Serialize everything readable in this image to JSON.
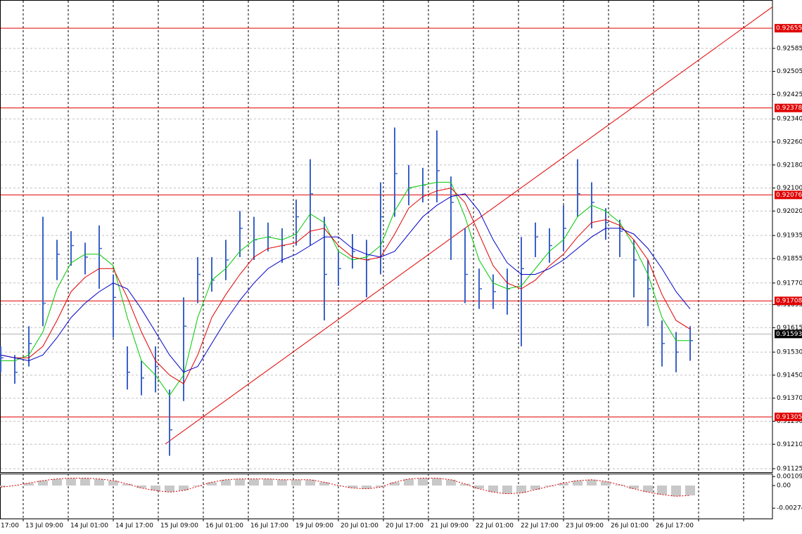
{
  "chart_data": {
    "type": "ohlc",
    "x": [
      -8,
      -3,
      2,
      7,
      12,
      17,
      22,
      27,
      32,
      37,
      42,
      47,
      52,
      57,
      62,
      67,
      72,
      77,
      82,
      87,
      92,
      97,
      102,
      107,
      112,
      117,
      122,
      127,
      132,
      137,
      142,
      147,
      152,
      157,
      162,
      167,
      172,
      177,
      182,
      187,
      192,
      197,
      202,
      207,
      212,
      217,
      222,
      227,
      232,
      237
    ],
    "high": [
      0.9155,
      0.9152,
      0.9162,
      0.92,
      0.9192,
      0.9195,
      0.9191,
      0.9197,
      0.918,
      0.9155,
      0.915,
      0.9155,
      0.914,
      0.9172,
      0.9186,
      0.9186,
      0.9192,
      0.9202,
      0.92,
      0.9198,
      0.9196,
      0.9206,
      0.922,
      0.92,
      0.9188,
      0.9194,
      0.9192,
      0.9212,
      0.9231,
      0.9218,
      0.9217,
      0.923,
      0.9214,
      0.9196,
      0.9182,
      0.918,
      0.9182,
      0.9193,
      0.9198,
      0.9196,
      0.9204,
      0.922,
      0.9212,
      0.9203,
      0.9199,
      0.9192,
      0.9185,
      0.9164,
      0.916,
      0.9162
    ],
    "low": [
      0.9146,
      0.9142,
      0.9148,
      0.9162,
      0.9178,
      0.9183,
      0.918,
      0.9175,
      0.9158,
      0.914,
      0.9138,
      0.9139,
      0.9117,
      0.9136,
      0.917,
      0.9174,
      0.9178,
      0.9186,
      0.9185,
      0.9188,
      0.9184,
      0.919,
      0.919,
      0.9164,
      0.9176,
      0.9182,
      0.9172,
      0.918,
      0.92,
      0.9204,
      0.9205,
      0.9205,
      0.9185,
      0.917,
      0.9168,
      0.9168,
      0.9166,
      0.9155,
      0.9186,
      0.9184,
      0.9188,
      0.92,
      0.9196,
      0.9192,
      0.9186,
      0.9172,
      0.9162,
      0.9148,
      0.9146,
      0.915
    ],
    "close": [
      0.9151,
      0.9146,
      0.9156,
      0.917,
      0.9187,
      0.919,
      0.9186,
      0.9189,
      0.9172,
      0.9146,
      0.9144,
      0.9148,
      0.9126,
      0.9162,
      0.918,
      0.9178,
      0.9185,
      0.9196,
      0.9192,
      0.9193,
      0.919,
      0.92,
      0.9208,
      0.918,
      0.9182,
      0.9188,
      0.9185,
      0.92,
      0.9215,
      0.921,
      0.9211,
      0.9216,
      0.9205,
      0.918,
      0.9175,
      0.9174,
      0.9175,
      0.9182,
      0.9193,
      0.919,
      0.9196,
      0.9208,
      0.9205,
      0.9198,
      0.9195,
      0.9185,
      0.9175,
      0.9156,
      0.9153,
      0.9157
    ],
    "bar_color": "#3a62c8",
    "series": [
      {
        "color": "#00c800",
        "values": [
          0.915,
          0.915,
          0.9152,
          0.916,
          0.9175,
          0.9184,
          0.9187,
          0.9187,
          0.9183,
          0.9165,
          0.915,
          0.9145,
          0.9138,
          0.9145,
          0.9165,
          0.9178,
          0.9182,
          0.9188,
          0.9192,
          0.9193,
          0.9192,
          0.9194,
          0.9201,
          0.9198,
          0.9188,
          0.9185,
          0.9186,
          0.919,
          0.9202,
          0.921,
          0.9211,
          0.9212,
          0.9212,
          0.92,
          0.9185,
          0.9177,
          0.9175,
          0.9176,
          0.9182,
          0.9188,
          0.9192,
          0.92,
          0.9204,
          0.9202,
          0.9198,
          0.919,
          0.918,
          0.9165,
          0.9157,
          0.9157
        ]
      },
      {
        "color": "#e00000",
        "values": [
          0.9152,
          0.9151,
          0.9151,
          0.9155,
          0.9164,
          0.9174,
          0.9179,
          0.9182,
          0.9182,
          0.9172,
          0.916,
          0.915,
          0.9145,
          0.9142,
          0.9152,
          0.9165,
          0.9173,
          0.918,
          0.9186,
          0.9189,
          0.919,
          0.9191,
          0.9195,
          0.9196,
          0.919,
          0.9186,
          0.9185,
          0.9186,
          0.9194,
          0.9203,
          0.9207,
          0.9209,
          0.921,
          0.9205,
          0.9194,
          0.9183,
          0.9177,
          0.9175,
          0.9178,
          0.9183,
          0.9187,
          0.9193,
          0.9198,
          0.9199,
          0.9197,
          0.9192,
          0.9185,
          0.9173,
          0.9164,
          0.9161
        ]
      },
      {
        "color": "#0000c8",
        "values": [
          0.9152,
          0.9151,
          0.915,
          0.9152,
          0.9158,
          0.9165,
          0.917,
          0.9174,
          0.9177,
          0.9175,
          0.9168,
          0.916,
          0.9152,
          0.9146,
          0.9148,
          0.9156,
          0.9164,
          0.9171,
          0.9177,
          0.9182,
          0.9185,
          0.9187,
          0.919,
          0.9193,
          0.9193,
          0.9189,
          0.9187,
          0.9186,
          0.9188,
          0.9194,
          0.92,
          0.9204,
          0.9207,
          0.9208,
          0.9202,
          0.9192,
          0.9184,
          0.918,
          0.918,
          0.9182,
          0.9185,
          0.9189,
          0.9193,
          0.9196,
          0.9196,
          0.9194,
          0.9189,
          0.9182,
          0.9174,
          0.9168
        ]
      }
    ],
    "levels": [
      0.92655,
      0.92378,
      0.92076,
      0.91708,
      0.91305
    ],
    "level_color": "#e00000",
    "current_price": 0.91593,
    "trendline": {
      "x": [
        50.5,
        266.25
      ],
      "y": [
        0.91211,
        0.92729
      ]
    },
    "xlim": [
      -8.25,
      266.25
    ],
    "ylim": [
      0.91113,
      0.92753
    ],
    "yticks": [
      {
        "value": 0.92585,
        "label": "0.92585"
      },
      {
        "value": 0.92505,
        "label": "0.92505"
      },
      {
        "value": 0.92425,
        "label": "0.92425"
      },
      {
        "value": 0.9234,
        "label": "0.92340"
      },
      {
        "value": 0.9226,
        "label": "0.92260"
      },
      {
        "value": 0.9218,
        "label": "0.92180"
      },
      {
        "value": 0.921,
        "label": "0.92100"
      },
      {
        "value": 0.9202,
        "label": "0.92020"
      },
      {
        "value": 0.91935,
        "label": "0.91935"
      },
      {
        "value": 0.91855,
        "label": "0.91855"
      },
      {
        "value": 0.9177,
        "label": "0.91770"
      },
      {
        "value": 0.91695,
        "label": "0.91695"
      },
      {
        "value": 0.91615,
        "label": "0.91615"
      },
      {
        "value": 0.9153,
        "label": "0.91530"
      },
      {
        "value": 0.9145,
        "label": "0.91450"
      },
      {
        "value": 0.9137,
        "label": "0.91370"
      },
      {
        "value": 0.9129,
        "label": "0.91290"
      },
      {
        "value": 0.9121,
        "label": "0.91210"
      },
      {
        "value": 0.91125,
        "label": "0.91125"
      }
    ],
    "xticks": [
      {
        "value": -16,
        "label": "17:00"
      },
      {
        "value": 0,
        "label": "13 Jul 09:00"
      },
      {
        "value": 16,
        "label": "14 Jul 01:00"
      },
      {
        "value": 32,
        "label": "14 Jul 17:00"
      },
      {
        "value": 48,
        "label": "15 Jul 09:00"
      },
      {
        "value": 64,
        "label": "16 Jul 01:00"
      },
      {
        "value": 80,
        "label": "16 Jul 17:00"
      },
      {
        "value": 96,
        "label": "19 Jul 09:00"
      },
      {
        "value": 112,
        "label": "20 Jul 01:00"
      },
      {
        "value": 128,
        "label": "20 Jul 17:00"
      },
      {
        "value": 144,
        "label": "21 Jul 09:00"
      },
      {
        "value": 160,
        "label": "22 Jul 01:00"
      },
      {
        "value": 176,
        "label": "22 Jul 17:00"
      },
      {
        "value": 192,
        "label": "23 Jul 09:00"
      },
      {
        "value": 208,
        "label": "26 Jul 01:00"
      },
      {
        "value": 224,
        "label": "26 Jul 17:00"
      },
      {
        "value": 240,
        "label": null
      },
      {
        "value": 256,
        "label": null
      }
    ],
    "oscillator": {
      "values": [
        -0.0002,
        0.0,
        0.0003,
        0.0006,
        0.0008,
        0.0009,
        0.0009,
        0.0008,
        0.0006,
        0.0002,
        -0.0003,
        -0.0006,
        -0.0008,
        -0.0006,
        -0.0001,
        0.0004,
        0.0007,
        0.0008,
        0.0008,
        0.0008,
        0.0007,
        0.0007,
        0.0007,
        0.0004,
        0.0,
        -0.0003,
        -0.0004,
        -0.0002,
        0.0004,
        0.0008,
        0.0009,
        0.0009,
        0.0007,
        0.0002,
        -0.0004,
        -0.0008,
        -0.001,
        -0.0009,
        -0.0005,
        -0.0001,
        0.0003,
        0.0006,
        0.0007,
        0.0005,
        0.0001,
        -0.0004,
        -0.0008,
        -0.0011,
        -0.0013,
        -0.0012
      ],
      "y2lim": [
        -0.004,
        0.00145
      ],
      "y2ticks": [
        {
          "value": 0.001091,
          "label": "0.001091"
        },
        {
          "value": 0,
          "label": "0.00"
        },
        {
          "value": -0.00274,
          "label": "-0.00274"
        }
      ]
    },
    "grid": true
  }
}
